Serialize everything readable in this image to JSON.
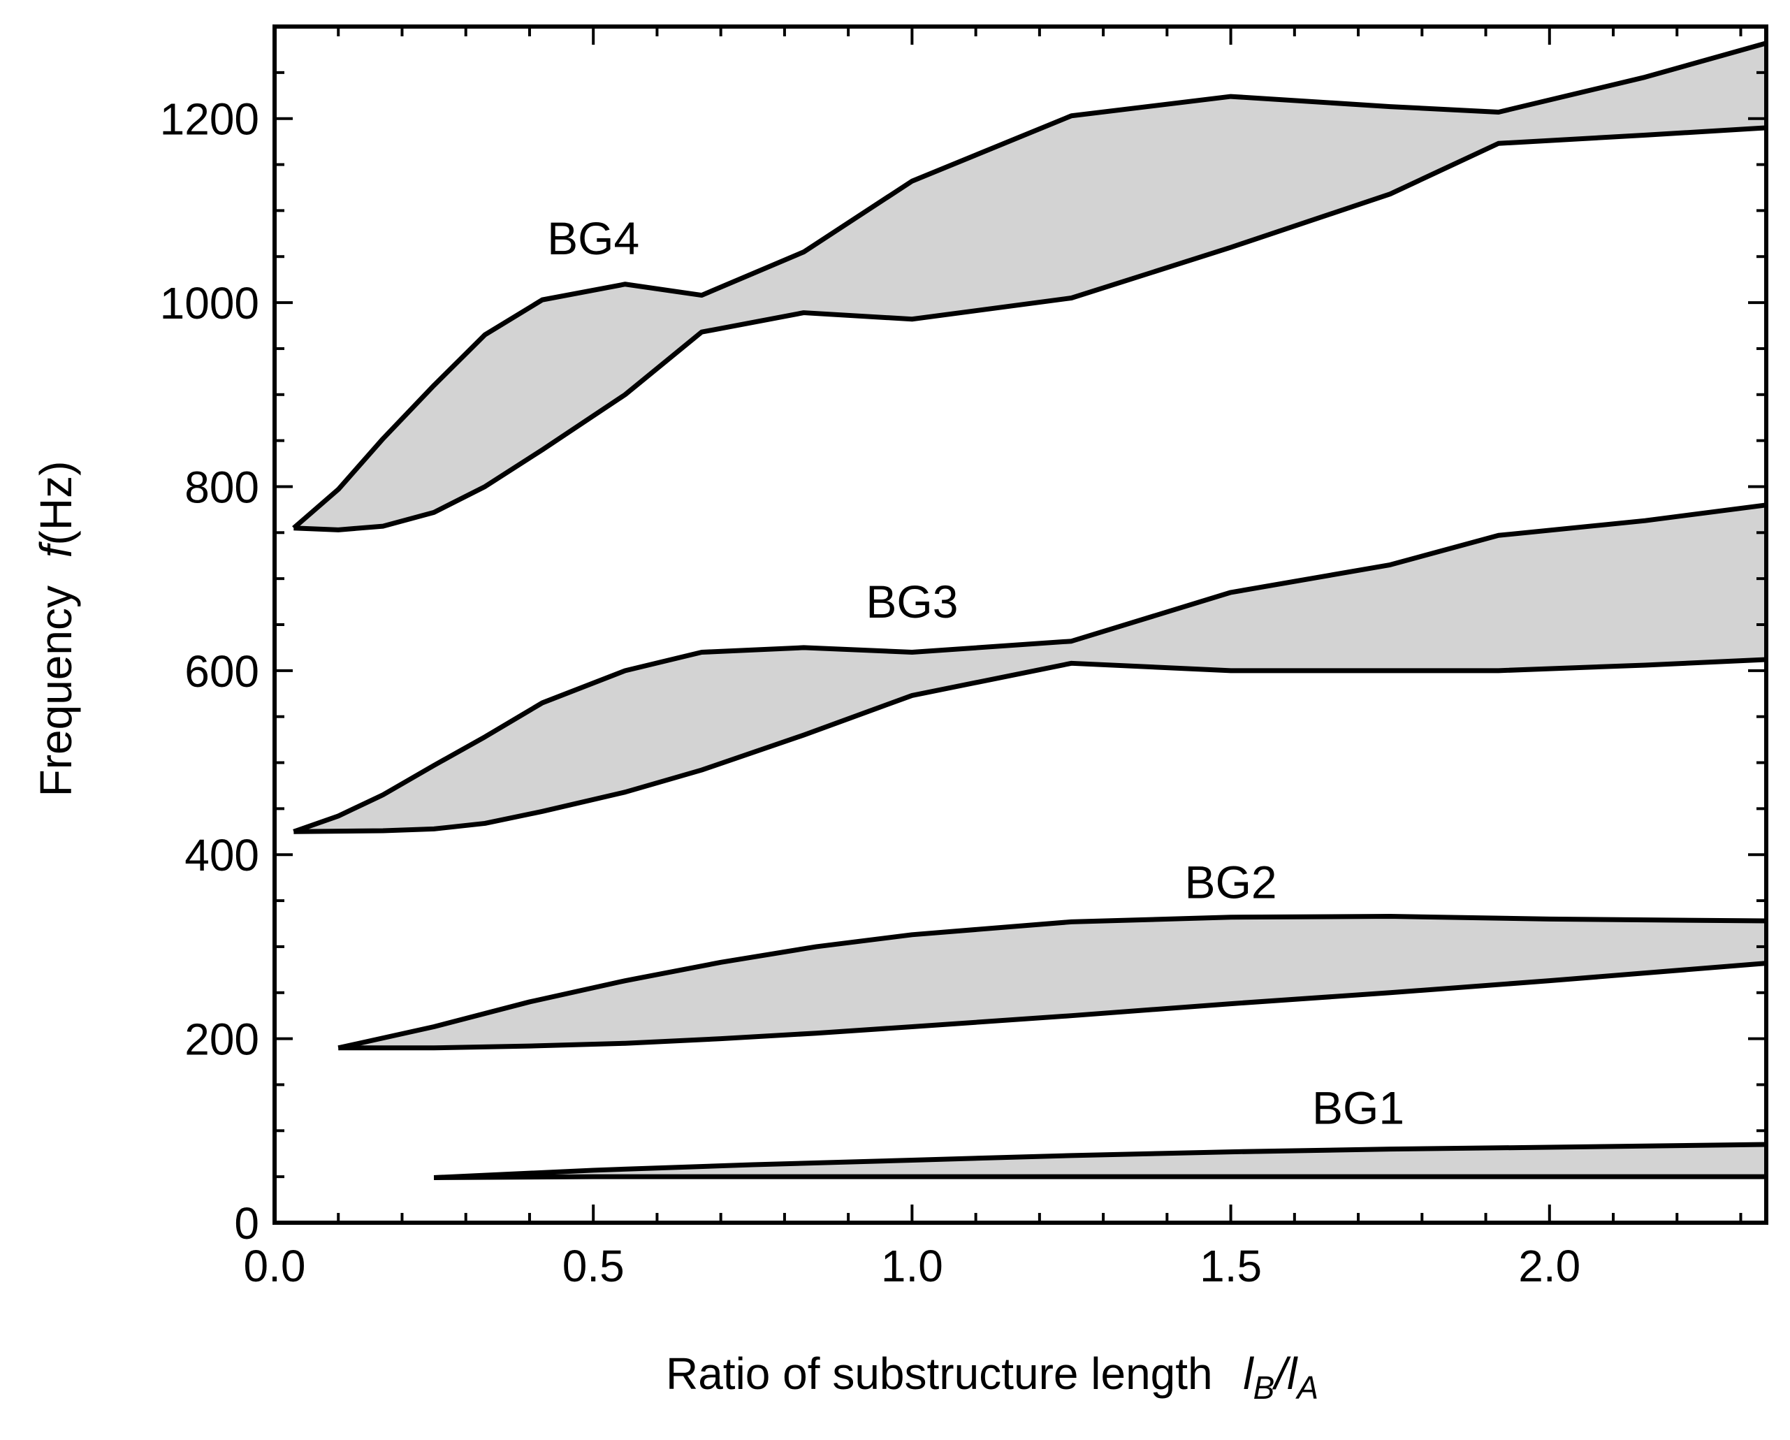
{
  "chart_data": {
    "type": "area",
    "title": "",
    "xlabel": {
      "prefix": "Ratio of substructure length",
      "numerator": "l",
      "numerator_sub": "B",
      "separator": "/",
      "denominator": "l",
      "denominator_sub": "A"
    },
    "ylabel": {
      "prefix": "Frequency",
      "symbol": "f",
      "unit": "(Hz)"
    },
    "xlim": [
      0.0,
      2.34
    ],
    "ylim": [
      0,
      1300
    ],
    "xticks": [
      0.0,
      0.5,
      1.0,
      1.5,
      2.0
    ],
    "xtick_labels": [
      "0.0",
      "0.5",
      "1.0",
      "1.5",
      "2.0"
    ],
    "yticks": [
      0,
      200,
      400,
      600,
      800,
      1000,
      1200
    ],
    "ytick_labels": [
      "0",
      "200",
      "400",
      "600",
      "800",
      "1000",
      "1200"
    ],
    "grid": false,
    "fill_color": "#d3d3d3",
    "line_color": "#000000",
    "bands": [
      {
        "name": "BG1",
        "label": "BG1",
        "label_at": [
          1.7,
          125
        ],
        "upper": [
          [
            0.25,
            49
          ],
          [
            0.5,
            57
          ],
          [
            0.75,
            63
          ],
          [
            1.0,
            68
          ],
          [
            1.25,
            73
          ],
          [
            1.5,
            77
          ],
          [
            1.75,
            80
          ],
          [
            2.0,
            82
          ],
          [
            2.34,
            85
          ]
        ],
        "lower": [
          [
            0.25,
            49
          ],
          [
            0.5,
            50
          ],
          [
            1.0,
            50
          ],
          [
            1.5,
            50
          ],
          [
            2.0,
            50
          ],
          [
            2.34,
            50
          ]
        ]
      },
      {
        "name": "BG2",
        "label": "BG2",
        "label_at": [
          1.5,
          370
        ],
        "upper": [
          [
            0.1,
            190
          ],
          [
            0.25,
            213
          ],
          [
            0.4,
            240
          ],
          [
            0.55,
            263
          ],
          [
            0.7,
            283
          ],
          [
            0.85,
            300
          ],
          [
            1.0,
            313
          ],
          [
            1.25,
            327
          ],
          [
            1.5,
            332
          ],
          [
            1.75,
            333
          ],
          [
            2.0,
            330
          ],
          [
            2.34,
            328
          ]
        ],
        "lower": [
          [
            0.1,
            190
          ],
          [
            0.25,
            190
          ],
          [
            0.4,
            192
          ],
          [
            0.55,
            195
          ],
          [
            0.7,
            200
          ],
          [
            0.85,
            206
          ],
          [
            1.0,
            213
          ],
          [
            1.25,
            225
          ],
          [
            1.5,
            238
          ],
          [
            1.75,
            250
          ],
          [
            2.0,
            263
          ],
          [
            2.34,
            282
          ]
        ]
      },
      {
        "name": "BG3",
        "label": "BG3",
        "label_at": [
          1.0,
          675
        ],
        "upper": [
          [
            0.03,
            425
          ],
          [
            0.1,
            442
          ],
          [
            0.17,
            465
          ],
          [
            0.25,
            497
          ],
          [
            0.33,
            528
          ],
          [
            0.42,
            565
          ],
          [
            0.55,
            600
          ],
          [
            0.67,
            620
          ],
          [
            0.83,
            625
          ],
          [
            1.0,
            620
          ],
          [
            1.25,
            632
          ],
          [
            1.5,
            685
          ],
          [
            1.75,
            715
          ],
          [
            1.92,
            747
          ],
          [
            2.15,
            763
          ],
          [
            2.34,
            780
          ]
        ],
        "lower": [
          [
            0.03,
            425
          ],
          [
            0.17,
            426
          ],
          [
            0.25,
            428
          ],
          [
            0.33,
            434
          ],
          [
            0.42,
            447
          ],
          [
            0.55,
            468
          ],
          [
            0.67,
            492
          ],
          [
            0.83,
            530
          ],
          [
            1.0,
            573
          ],
          [
            1.25,
            608
          ],
          [
            1.5,
            600
          ],
          [
            1.75,
            600
          ],
          [
            1.92,
            600
          ],
          [
            2.15,
            606
          ],
          [
            2.34,
            612
          ]
        ]
      },
      {
        "name": "BG4",
        "label": "BG4",
        "label_at": [
          0.5,
          1070
        ],
        "upper": [
          [
            0.03,
            755
          ],
          [
            0.1,
            797
          ],
          [
            0.17,
            852
          ],
          [
            0.25,
            910
          ],
          [
            0.33,
            965
          ],
          [
            0.42,
            1003
          ],
          [
            0.55,
            1020
          ],
          [
            0.67,
            1008
          ],
          [
            0.83,
            1055
          ],
          [
            1.0,
            1132
          ],
          [
            1.25,
            1203
          ],
          [
            1.5,
            1224
          ],
          [
            1.75,
            1213
          ],
          [
            1.92,
            1207
          ],
          [
            2.15,
            1245
          ],
          [
            2.34,
            1282
          ]
        ],
        "lower": [
          [
            0.03,
            755
          ],
          [
            0.1,
            753
          ],
          [
            0.17,
            757
          ],
          [
            0.25,
            772
          ],
          [
            0.33,
            800
          ],
          [
            0.42,
            840
          ],
          [
            0.55,
            900
          ],
          [
            0.67,
            968
          ],
          [
            0.83,
            989
          ],
          [
            1.0,
            982
          ],
          [
            1.25,
            1005
          ],
          [
            1.5,
            1060
          ],
          [
            1.75,
            1118
          ],
          [
            1.92,
            1173
          ],
          [
            2.15,
            1182
          ],
          [
            2.34,
            1190
          ]
        ]
      }
    ]
  }
}
